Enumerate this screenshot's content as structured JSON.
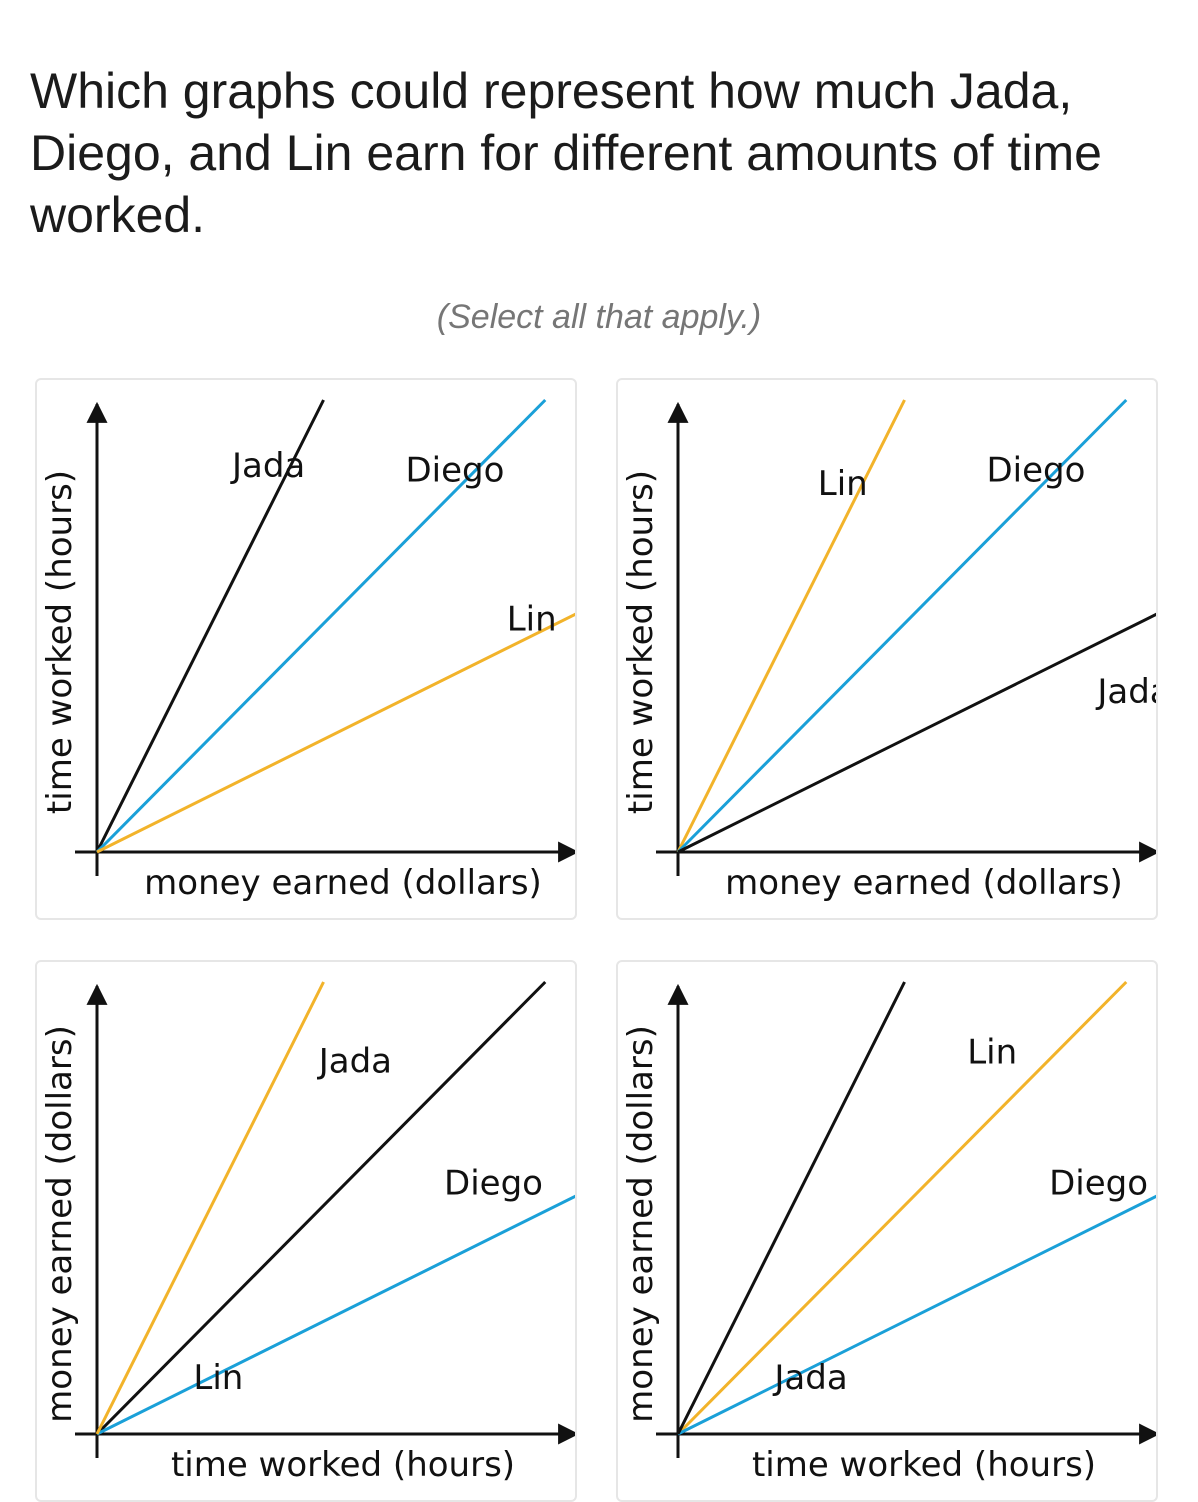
{
  "question": "Which graphs could represent how much Jada, Diego, and Lin earn for different amounts of time worked.",
  "instruction": "(Select all that apply.)",
  "colors": {
    "jada": "#111111",
    "diego": "#1aa0d8",
    "lin": "#f2b32a",
    "card_border": "#e6e6e6"
  },
  "choices": [
    {
      "id": "choice-1",
      "x_label": "money earned (dollars)",
      "y_label": "time worked (hours)",
      "series": [
        {
          "name": "Jada",
          "color": "#111111",
          "end": [
            0.47,
            1.0
          ],
          "label_pos": [
            0.28,
            0.83
          ]
        },
        {
          "name": "Diego",
          "color": "#1aa0d8",
          "end": [
            0.93,
            1.0
          ],
          "label_pos": [
            0.64,
            0.82
          ]
        },
        {
          "name": "Lin",
          "color": "#f2b32a",
          "end": [
            1.0,
            0.53
          ],
          "label_pos": [
            0.85,
            0.49
          ]
        }
      ]
    },
    {
      "id": "choice-2",
      "x_label": "money earned (dollars)",
      "y_label": "time worked (hours)",
      "series": [
        {
          "name": "Lin",
          "color": "#f2b32a",
          "end": [
            0.47,
            1.0
          ],
          "label_pos": [
            0.29,
            0.79
          ]
        },
        {
          "name": "Diego",
          "color": "#1aa0d8",
          "end": [
            0.93,
            1.0
          ],
          "label_pos": [
            0.64,
            0.82
          ]
        },
        {
          "name": "Jada",
          "color": "#111111",
          "end": [
            1.0,
            0.53
          ],
          "label_pos": [
            0.87,
            0.33
          ]
        }
      ]
    },
    {
      "id": "choice-3",
      "x_label": "time worked (hours)",
      "y_label": "money earned (dollars)",
      "series": [
        {
          "name": "Jada",
          "color": "#111111",
          "end": [
            0.93,
            1.0
          ],
          "label_pos": [
            0.46,
            0.8
          ]
        },
        {
          "name": "Diego",
          "color": "#1aa0d8",
          "end": [
            1.0,
            0.53
          ],
          "label_pos": [
            0.72,
            0.53
          ]
        },
        {
          "name": "Lin",
          "color": "#f2b32a",
          "end": [
            0.47,
            1.0
          ],
          "label_pos": [
            0.2,
            0.1
          ]
        }
      ]
    },
    {
      "id": "choice-4",
      "x_label": "time worked (hours)",
      "y_label": "money earned (dollars)",
      "series": [
        {
          "name": "Lin",
          "color": "#f2b32a",
          "end": [
            0.93,
            1.0
          ],
          "label_pos": [
            0.6,
            0.82
          ]
        },
        {
          "name": "Diego",
          "color": "#1aa0d8",
          "end": [
            1.0,
            0.53
          ],
          "label_pos": [
            0.77,
            0.53
          ]
        },
        {
          "name": "Jada",
          "color": "#111111",
          "end": [
            0.47,
            1.0
          ],
          "label_pos": [
            0.2,
            0.1
          ]
        }
      ]
    }
  ]
}
